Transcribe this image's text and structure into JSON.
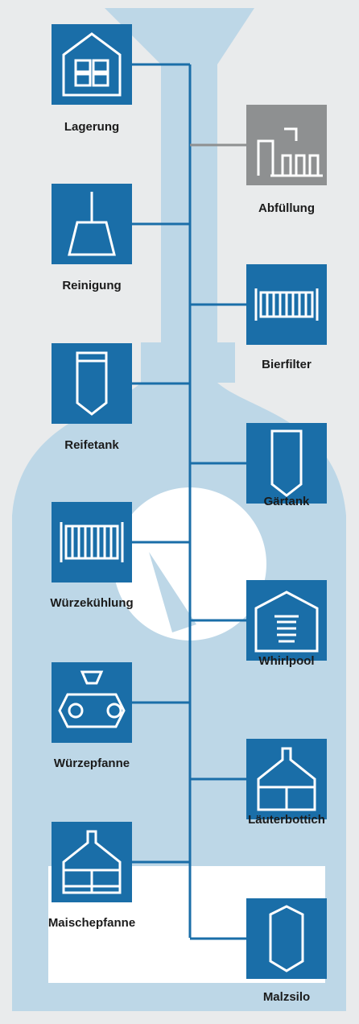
{
  "nodes": [
    {
      "label": "Lagerung"
    },
    {
      "label": "Abfüllung"
    },
    {
      "label": "Reinigung"
    },
    {
      "label": "Bierfilter"
    },
    {
      "label": "Reifetank"
    },
    {
      "label": "Gärtank"
    },
    {
      "label": "Würzekühlung"
    },
    {
      "label": "Whirlpool"
    },
    {
      "label": "Würzepfanne"
    },
    {
      "label": "Läuterbottich"
    },
    {
      "label": "Maischepfanne"
    },
    {
      "label": "Malzsilo"
    }
  ]
}
